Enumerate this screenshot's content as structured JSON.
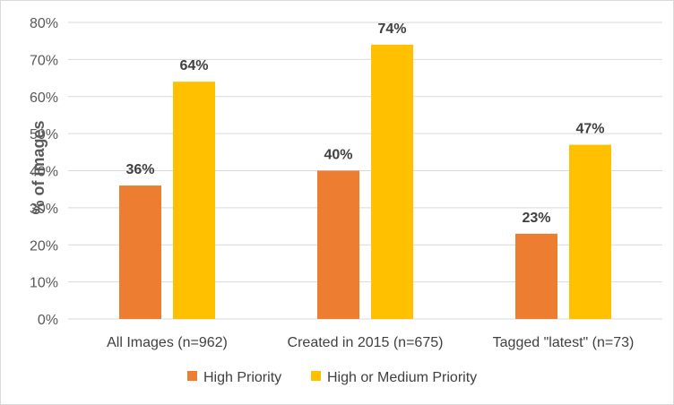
{
  "chart_data": {
    "type": "bar",
    "title": "",
    "xlabel": "",
    "ylabel": "% of images",
    "categories": [
      "All Images (n=962)",
      "Created in 2015 (n=675)",
      "Tagged \"latest\" (n=73)"
    ],
    "series": [
      {
        "name": "High Priority",
        "values": [
          36,
          40,
          23
        ],
        "labels": [
          "36%",
          "40%",
          "23%"
        ],
        "color": "#ED7D31"
      },
      {
        "name": "High or Medium Priority",
        "values": [
          64,
          74,
          47
        ],
        "labels": [
          "64%",
          "74%",
          "47%"
        ],
        "color": "#FFC000"
      }
    ],
    "ylim": [
      0,
      80
    ],
    "yticks": [
      0,
      10,
      20,
      30,
      40,
      50,
      60,
      70,
      80
    ],
    "ytick_labels": [
      "0%",
      "10%",
      "20%",
      "30%",
      "40%",
      "50%",
      "60%",
      "70%",
      "80%"
    ],
    "grid": true,
    "legend_position": "bottom"
  }
}
